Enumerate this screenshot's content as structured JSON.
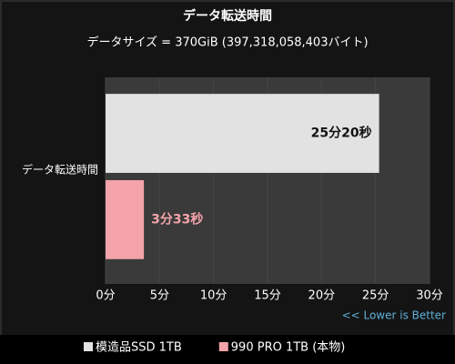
{
  "chart_data": {
    "type": "hbar",
    "title": "データ転送時間",
    "subtitle": "データサイズ = 370GiB (397,318,058,403バイト)",
    "categories": [
      "データ転送時間"
    ],
    "series": [
      {
        "name": "模造品SSD 1TB",
        "color": "#e2e2e2",
        "values": [
          25.333333
        ],
        "value_labels": [
          "25分20秒"
        ],
        "label_color": "#111111"
      },
      {
        "name": "990 PRO 1TB (本物)",
        "color": "#f4a3ab",
        "values": [
          3.55
        ],
        "value_labels": [
          "3分33秒"
        ],
        "label_color": "#f4a3ab"
      }
    ],
    "xlim": [
      0,
      30
    ],
    "xticks": [
      {
        "value": 0,
        "label": "0分"
      },
      {
        "value": 5,
        "label": "5分"
      },
      {
        "value": 10,
        "label": "10分"
      },
      {
        "value": 15,
        "label": "15分"
      },
      {
        "value": 20,
        "label": "20分"
      },
      {
        "value": 25,
        "label": "25分"
      },
      {
        "value": 30,
        "label": "30分"
      }
    ],
    "annotation": "<< Lower is Better",
    "grid": true,
    "legend": "bottom"
  }
}
